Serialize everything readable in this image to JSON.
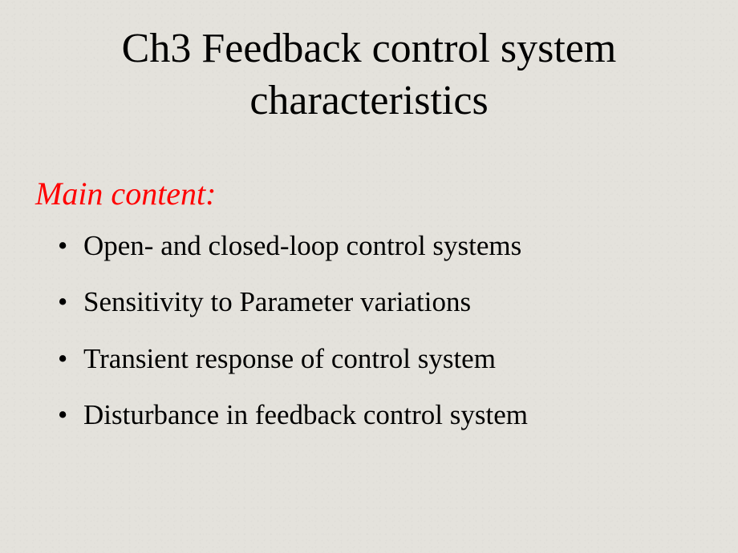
{
  "slide": {
    "title_line1": "Ch3   Feedback control system",
    "title_line2": "characteristics",
    "subtitle": "Main content:",
    "bullets": [
      "Open- and closed-loop control systems",
      "Sensitivity to Parameter variations",
      "Transient response of control system",
      "Disturbance in feedback control system"
    ]
  },
  "style": {
    "background_color": "#e4e2dc",
    "title_color": "#000000",
    "title_fontsize": 52,
    "subtitle_color": "#ff0000",
    "subtitle_fontsize": 40,
    "bullet_color": "#000000",
    "bullet_fontsize": 35,
    "font_family": "Times New Roman"
  }
}
